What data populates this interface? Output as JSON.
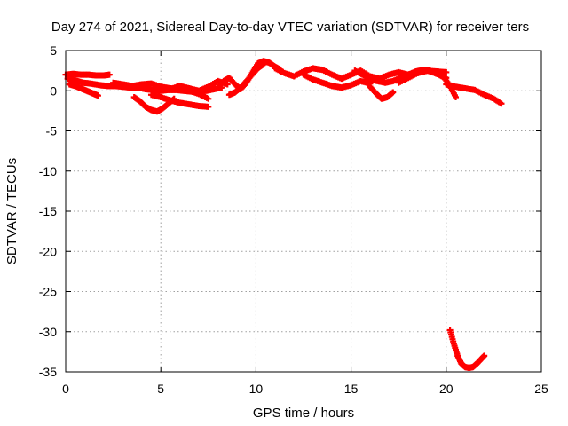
{
  "chart_data": {
    "type": "scatter",
    "title": "Day 274 of 2021, Sidereal Day-to-day VTEC variation (SDTVAR) for receiver ters",
    "xlabel": "GPS time / hours",
    "ylabel": "SDTVAR / TECUs",
    "xlim": [
      0,
      25
    ],
    "ylim": [
      -35,
      5
    ],
    "xticks": [
      0,
      5,
      10,
      15,
      20,
      25
    ],
    "yticks": [
      5,
      0,
      -5,
      -10,
      -15,
      -20,
      -25,
      -30,
      -35
    ],
    "grid": true,
    "series": [
      {
        "name": "SDTVAR",
        "color": "#ff0000",
        "tracks": [
          {
            "x": [
              0.0,
              0.4,
              0.8,
              1.2,
              1.6,
              2.0,
              2.3
            ],
            "y": [
              2.0,
              2.1,
              2.0,
              2.0,
              1.9,
              1.9,
              2.0
            ]
          },
          {
            "x": [
              0.1,
              0.5,
              0.9,
              1.3,
              1.8,
              2.2,
              2.6,
              3.0,
              3.4,
              3.8,
              4.2,
              4.6,
              5.0,
              5.4,
              5.8,
              6.2,
              6.6,
              7.0,
              7.4,
              7.8,
              8.2
            ],
            "y": [
              1.5,
              1.3,
              1.0,
              0.9,
              0.7,
              0.6,
              0.6,
              0.5,
              0.4,
              0.4,
              0.2,
              0.1,
              0.0,
              0.1,
              0.1,
              0.0,
              -0.1,
              -0.1,
              0.0,
              0.2,
              0.4
            ]
          },
          {
            "x": [
              0.2,
              0.5,
              0.8,
              1.1,
              1.4,
              1.7
            ],
            "y": [
              0.8,
              0.6,
              0.3,
              0.0,
              -0.3,
              -0.6
            ]
          },
          {
            "x": [
              2.5,
              3.0,
              3.5,
              4.0,
              4.5,
              5.0,
              5.5,
              6.0,
              6.5,
              7.0,
              7.5
            ],
            "y": [
              1.0,
              0.8,
              0.6,
              0.8,
              0.9,
              0.5,
              0.3,
              0.2,
              0.0,
              -0.4,
              -1.0
            ]
          },
          {
            "x": [
              3.6,
              3.9,
              4.2,
              4.5,
              4.8,
              5.1,
              5.4,
              5.7
            ],
            "y": [
              -0.8,
              -1.3,
              -2.0,
              -2.4,
              -2.6,
              -2.2,
              -1.6,
              -1.0
            ]
          },
          {
            "x": [
              4.5,
              5.0,
              5.5,
              6.0,
              6.5,
              7.0,
              7.5
            ],
            "y": [
              -0.5,
              -0.8,
              -1.2,
              -1.5,
              -1.7,
              -1.9,
              -2.0
            ]
          },
          {
            "x": [
              5.5,
              6.0,
              6.5,
              7.0,
              7.5,
              8.0,
              8.5
            ],
            "y": [
              0.2,
              0.6,
              0.3,
              0.0,
              0.5,
              1.2,
              0.8
            ]
          },
          {
            "x": [
              8.0,
              8.3,
              8.6,
              8.9,
              9.2,
              9.5,
              9.8,
              10.1,
              10.4,
              10.7,
              11.0,
              11.3
            ],
            "y": [
              0.4,
              1.2,
              1.6,
              0.8,
              0.2,
              1.0,
              2.2,
              3.4,
              3.7,
              3.5,
              3.0,
              2.6
            ]
          },
          {
            "x": [
              8.6,
              8.9,
              9.2,
              9.5,
              9.8,
              10.1,
              10.4
            ],
            "y": [
              -0.5,
              -0.2,
              0.4,
              1.2,
              2.0,
              2.8,
              3.3
            ]
          },
          {
            "x": [
              11.0,
              11.5,
              12.0,
              12.5,
              13.0,
              13.5,
              14.0,
              14.5,
              15.0,
              15.5,
              16.0,
              16.5,
              17.0,
              17.5,
              18.0,
              18.5,
              19.0,
              19.5,
              20.0
            ],
            "y": [
              2.8,
              2.2,
              1.8,
              2.4,
              2.8,
              2.6,
              2.0,
              1.5,
              2.0,
              2.5,
              1.8,
              1.5,
              2.0,
              2.3,
              2.0,
              2.2,
              2.5,
              2.4,
              2.3
            ]
          },
          {
            "x": [
              12.5,
              13.0,
              13.5,
              14.0,
              14.5,
              15.0,
              15.5,
              16.0
            ],
            "y": [
              2.0,
              1.4,
              1.0,
              0.6,
              0.4,
              0.7,
              1.2,
              0.9
            ]
          },
          {
            "x": [
              15.2,
              15.6,
              16.0,
              16.4,
              16.8,
              17.2,
              17.6,
              18.0,
              18.4,
              18.8,
              19.2,
              19.6,
              20.0
            ],
            "y": [
              2.5,
              2.0,
              1.4,
              1.2,
              1.0,
              1.2,
              1.6,
              2.0,
              2.4,
              2.6,
              2.4,
              2.0,
              1.6
            ]
          },
          {
            "x": [
              16.0,
              16.3,
              16.6,
              16.9,
              17.2
            ],
            "y": [
              0.5,
              -0.3,
              -1.0,
              -0.8,
              -0.2
            ]
          },
          {
            "x": [
              17.5,
              18.0,
              18.5,
              19.0,
              19.5,
              19.9,
              20.2,
              20.5
            ],
            "y": [
              1.0,
              1.6,
              2.2,
              2.6,
              2.2,
              1.6,
              0.6,
              -0.8
            ]
          },
          {
            "x": [
              20.0,
              20.5,
              21.0,
              21.5,
              22.0,
              22.5,
              22.9
            ],
            "y": [
              0.8,
              0.5,
              0.3,
              0.1,
              -0.5,
              -1.0,
              -1.6
            ]
          },
          {
            "x": [
              20.2,
              20.4,
              20.6,
              20.8,
              21.0,
              21.2,
              21.4,
              21.6,
              21.8,
              22.0
            ],
            "y": [
              -29.8,
              -31.5,
              -33.0,
              -34.0,
              -34.4,
              -34.5,
              -34.4,
              -34.0,
              -33.5,
              -33.0
            ]
          }
        ]
      }
    ]
  }
}
